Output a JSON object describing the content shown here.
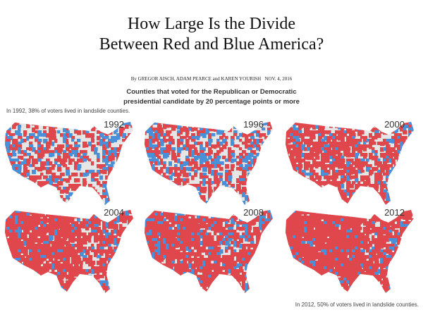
{
  "title_line1": "How Large Is the Divide",
  "title_line2": "Between Red and Blue America?",
  "byline": "By GREGOR AISCH, ADAM PEARCE and KAREN YOURISH   NOV. 4, 2016",
  "subtitle_line1": "Counties that voted for the Republican or Democratic",
  "subtitle_line2": "presidential candidate by 20 percentage points or more",
  "note_top": "In 1992, 38% of voters lived in landslide counties.",
  "note_bottom": "In 2012, 50% of voters lived in landslide counties.",
  "colors": {
    "republican": "#e0474c",
    "democratic": "#4a90d9",
    "other": "#e6e6e6"
  },
  "maps": [
    {
      "year": "1992"
    },
    {
      "year": "1996"
    },
    {
      "year": "2000"
    },
    {
      "year": "2004"
    },
    {
      "year": "2008"
    },
    {
      "year": "2012"
    }
  ]
}
